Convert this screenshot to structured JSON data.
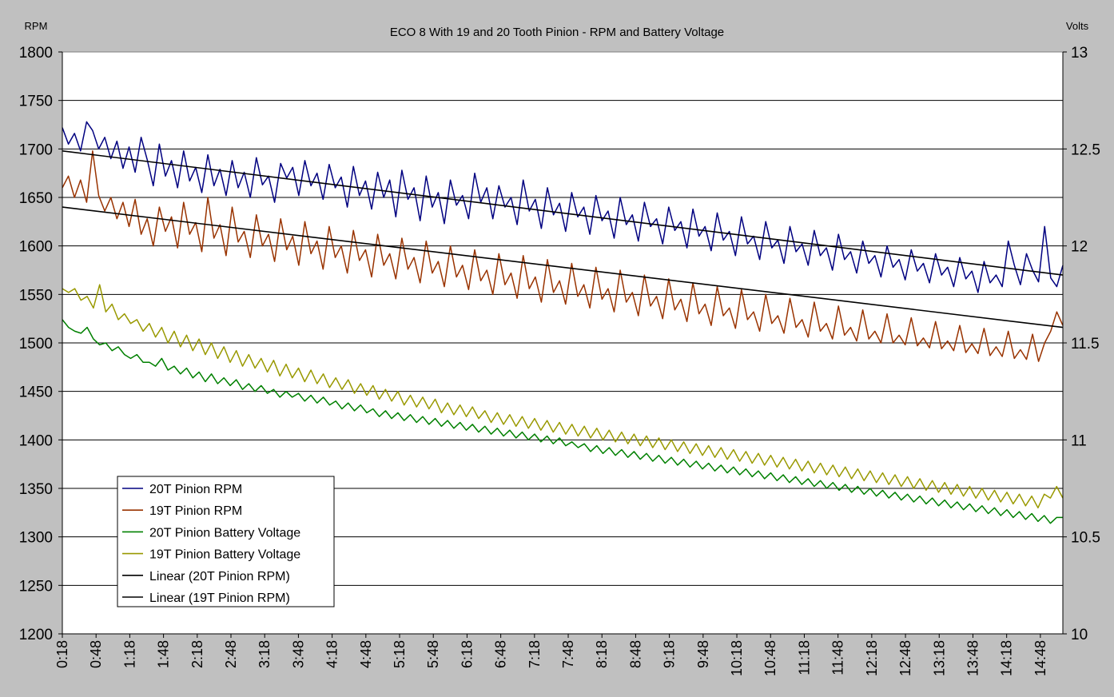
{
  "chart_data": {
    "type": "line",
    "title": "ECO 8 With 19 and 20 Tooth Pinion - RPM and Battery Voltage",
    "ylabel": "RPM",
    "y2label": "Volts",
    "ylim": [
      1200,
      1800
    ],
    "y2lim": [
      10,
      13
    ],
    "yticks": [
      1200,
      1250,
      1300,
      1350,
      1400,
      1450,
      1500,
      1550,
      1600,
      1650,
      1700,
      1750,
      1800
    ],
    "y2ticks": [
      10,
      10.5,
      11,
      11.5,
      12,
      12.5,
      13
    ],
    "ytick_labels": [
      "1200",
      "1250",
      "1300",
      "1350",
      "1400",
      "1450",
      "1500",
      "1550",
      "1600",
      "1650",
      "1700",
      "1750",
      "1800"
    ],
    "y2tick_labels": [
      "10",
      "10.5",
      "11",
      "11.5",
      "12",
      "12.5",
      "13"
    ],
    "x_range_seconds": [
      18,
      908
    ],
    "xtick_labels": [
      "0:18",
      "0:48",
      "1:18",
      "1:48",
      "2:18",
      "2:48",
      "3:18",
      "3:48",
      "4:18",
      "4:48",
      "5:18",
      "5:48",
      "6:18",
      "6:48",
      "7:18",
      "7:48",
      "8:18",
      "8:48",
      "9:18",
      "9:48",
      "10:18",
      "10:48",
      "11:18",
      "11:48",
      "12:18",
      "12:48",
      "13:18",
      "13:48",
      "14:18",
      "14:48"
    ],
    "grid": "horizontal",
    "legend_position": "bottom-left",
    "series": [
      {
        "name": "20T Pinion RPM",
        "axis": "left",
        "color": "#000080",
        "values": [
          1722,
          1705,
          1716,
          1698,
          1728,
          1719,
          1700,
          1712,
          1690,
          1708,
          1680,
          1702,
          1676,
          1712,
          1689,
          1662,
          1705,
          1672,
          1688,
          1660,
          1698,
          1667,
          1681,
          1655,
          1694,
          1662,
          1679,
          1652,
          1688,
          1660,
          1676,
          1650,
          1691,
          1663,
          1672,
          1645,
          1685,
          1670,
          1681,
          1652,
          1688,
          1662,
          1675,
          1648,
          1684,
          1660,
          1671,
          1640,
          1682,
          1652,
          1667,
          1638,
          1676,
          1650,
          1668,
          1630,
          1678,
          1648,
          1660,
          1626,
          1672,
          1640,
          1655,
          1623,
          1668,
          1642,
          1652,
          1628,
          1675,
          1645,
          1660,
          1628,
          1662,
          1640,
          1650,
          1622,
          1668,
          1636,
          1648,
          1618,
          1660,
          1632,
          1644,
          1615,
          1655,
          1630,
          1640,
          1612,
          1652,
          1626,
          1636,
          1608,
          1650,
          1622,
          1632,
          1605,
          1645,
          1620,
          1628,
          1602,
          1640,
          1616,
          1625,
          1598,
          1638,
          1610,
          1620,
          1595,
          1634,
          1606,
          1615,
          1590,
          1630,
          1602,
          1610,
          1586,
          1625,
          1598,
          1606,
          1582,
          1620,
          1594,
          1602,
          1580,
          1616,
          1590,
          1598,
          1575,
          1612,
          1586,
          1594,
          1572,
          1605,
          1582,
          1590,
          1568,
          1600,
          1578,
          1586,
          1565,
          1596,
          1574,
          1582,
          1562,
          1592,
          1570,
          1578,
          1558,
          1588,
          1566,
          1574,
          1552,
          1584,
          1562,
          1570,
          1558,
          1605,
          1580,
          1560,
          1592,
          1575,
          1563,
          1620,
          1567,
          1558,
          1580
        ]
      },
      {
        "name": "19T Pinion RPM",
        "axis": "left",
        "color": "#993300",
        "values": [
          1660,
          1672,
          1650,
          1668,
          1645,
          1698,
          1652,
          1636,
          1650,
          1628,
          1645,
          1620,
          1648,
          1612,
          1628,
          1600,
          1640,
          1615,
          1630,
          1598,
          1645,
          1612,
          1624,
          1594,
          1650,
          1608,
          1622,
          1590,
          1640,
          1604,
          1615,
          1588,
          1632,
          1600,
          1612,
          1584,
          1628,
          1596,
          1610,
          1580,
          1625,
          1592,
          1605,
          1576,
          1620,
          1588,
          1600,
          1572,
          1616,
          1585,
          1596,
          1568,
          1612,
          1580,
          1592,
          1566,
          1608,
          1576,
          1588,
          1562,
          1605,
          1572,
          1584,
          1558,
          1600,
          1568,
          1580,
          1555,
          1596,
          1564,
          1575,
          1550,
          1592,
          1560,
          1572,
          1546,
          1590,
          1556,
          1568,
          1542,
          1586,
          1552,
          1564,
          1540,
          1582,
          1548,
          1560,
          1536,
          1578,
          1545,
          1556,
          1532,
          1575,
          1542,
          1552,
          1528,
          1570,
          1538,
          1548,
          1525,
          1566,
          1534,
          1545,
          1522,
          1562,
          1530,
          1540,
          1518,
          1558,
          1528,
          1536,
          1515,
          1555,
          1524,
          1532,
          1512,
          1550,
          1520,
          1528,
          1510,
          1546,
          1516,
          1524,
          1506,
          1542,
          1512,
          1520,
          1504,
          1538,
          1508,
          1516,
          1502,
          1534,
          1504,
          1512,
          1500,
          1530,
          1500,
          1508,
          1498,
          1526,
          1497,
          1505,
          1495,
          1522,
          1494,
          1502,
          1492,
          1518,
          1490,
          1499,
          1489,
          1515,
          1487,
          1496,
          1486,
          1512,
          1484,
          1493,
          1483,
          1509,
          1481,
          1500,
          1512,
          1532,
          1518
        ]
      },
      {
        "name": "20T Pinion Battery Voltage",
        "axis": "right",
        "color": "#008000",
        "values": [
          11.62,
          11.58,
          11.56,
          11.55,
          11.58,
          11.52,
          11.49,
          11.5,
          11.46,
          11.48,
          11.44,
          11.42,
          11.44,
          11.4,
          11.4,
          11.38,
          11.42,
          11.36,
          11.38,
          11.34,
          11.37,
          11.32,
          11.35,
          11.3,
          11.34,
          11.29,
          11.32,
          11.28,
          11.31,
          11.26,
          11.29,
          11.25,
          11.28,
          11.24,
          11.26,
          11.22,
          11.25,
          11.22,
          11.24,
          11.2,
          11.23,
          11.19,
          11.22,
          11.18,
          11.2,
          11.16,
          11.19,
          11.15,
          11.18,
          11.14,
          11.16,
          11.12,
          11.15,
          11.11,
          11.14,
          11.1,
          11.13,
          11.09,
          11.12,
          11.08,
          11.11,
          11.07,
          11.1,
          11.06,
          11.09,
          11.05,
          11.08,
          11.04,
          11.07,
          11.03,
          11.06,
          11.02,
          11.05,
          11.01,
          11.04,
          11.0,
          11.03,
          10.99,
          11.02,
          10.98,
          11.01,
          10.97,
          10.99,
          10.96,
          10.98,
          10.94,
          10.97,
          10.93,
          10.96,
          10.92,
          10.95,
          10.91,
          10.94,
          10.9,
          10.93,
          10.89,
          10.92,
          10.88,
          10.91,
          10.87,
          10.9,
          10.86,
          10.89,
          10.85,
          10.88,
          10.84,
          10.87,
          10.83,
          10.86,
          10.82,
          10.85,
          10.81,
          10.84,
          10.8,
          10.83,
          10.79,
          10.82,
          10.78,
          10.81,
          10.77,
          10.8,
          10.76,
          10.79,
          10.75,
          10.78,
          10.74,
          10.77,
          10.73,
          10.76,
          10.72,
          10.75,
          10.71,
          10.74,
          10.7,
          10.73,
          10.69,
          10.72,
          10.68,
          10.71,
          10.67,
          10.7,
          10.66,
          10.69,
          10.65,
          10.68,
          10.64,
          10.67,
          10.63,
          10.66,
          10.62,
          10.65,
          10.61,
          10.64,
          10.6,
          10.63,
          10.59,
          10.62,
          10.58,
          10.61,
          10.57,
          10.6,
          10.6
        ]
      },
      {
        "name": "19T Pinion Battery Voltage",
        "axis": "right",
        "color": "#999900",
        "values": [
          11.78,
          11.76,
          11.78,
          11.72,
          11.74,
          11.68,
          11.8,
          11.66,
          11.7,
          11.62,
          11.65,
          11.6,
          11.62,
          11.56,
          11.6,
          11.53,
          11.58,
          11.5,
          11.56,
          11.48,
          11.54,
          11.46,
          11.52,
          11.44,
          11.5,
          11.42,
          11.48,
          11.4,
          11.46,
          11.38,
          11.44,
          11.37,
          11.42,
          11.35,
          11.41,
          11.33,
          11.39,
          11.32,
          11.37,
          11.3,
          11.36,
          11.29,
          11.34,
          11.27,
          11.32,
          11.26,
          11.31,
          11.24,
          11.29,
          11.23,
          11.28,
          11.21,
          11.26,
          11.2,
          11.25,
          11.18,
          11.23,
          11.17,
          11.22,
          11.16,
          11.21,
          11.14,
          11.19,
          11.13,
          11.18,
          11.12,
          11.17,
          11.11,
          11.15,
          11.09,
          11.14,
          11.08,
          11.13,
          11.07,
          11.12,
          11.06,
          11.11,
          11.05,
          11.1,
          11.04,
          11.09,
          11.03,
          11.08,
          11.02,
          11.07,
          11.01,
          11.06,
          11.0,
          11.05,
          10.99,
          11.04,
          10.98,
          11.03,
          10.97,
          11.02,
          10.96,
          11.01,
          10.95,
          11.0,
          10.94,
          10.99,
          10.93,
          10.98,
          10.92,
          10.97,
          10.91,
          10.96,
          10.9,
          10.95,
          10.89,
          10.94,
          10.88,
          10.93,
          10.87,
          10.92,
          10.86,
          10.91,
          10.85,
          10.9,
          10.84,
          10.89,
          10.83,
          10.88,
          10.82,
          10.87,
          10.81,
          10.86,
          10.8,
          10.85,
          10.79,
          10.84,
          10.78,
          10.83,
          10.77,
          10.82,
          10.76,
          10.81,
          10.75,
          10.8,
          10.74,
          10.79,
          10.73,
          10.78,
          10.72,
          10.77,
          10.71,
          10.76,
          10.7,
          10.75,
          10.69,
          10.74,
          10.68,
          10.73,
          10.67,
          10.72,
          10.66,
          10.71,
          10.65,
          10.72,
          10.7,
          10.76,
          10.7
        ]
      },
      {
        "name": "Linear (20T Pinion RPM)",
        "axis": "left",
        "color": "#000000",
        "type": "trendline",
        "from": 1698,
        "to": 1570
      },
      {
        "name": "Linear (19T Pinion RPM)",
        "axis": "left",
        "color": "#000000",
        "type": "trendline",
        "from": 1640,
        "to": 1516
      }
    ]
  }
}
